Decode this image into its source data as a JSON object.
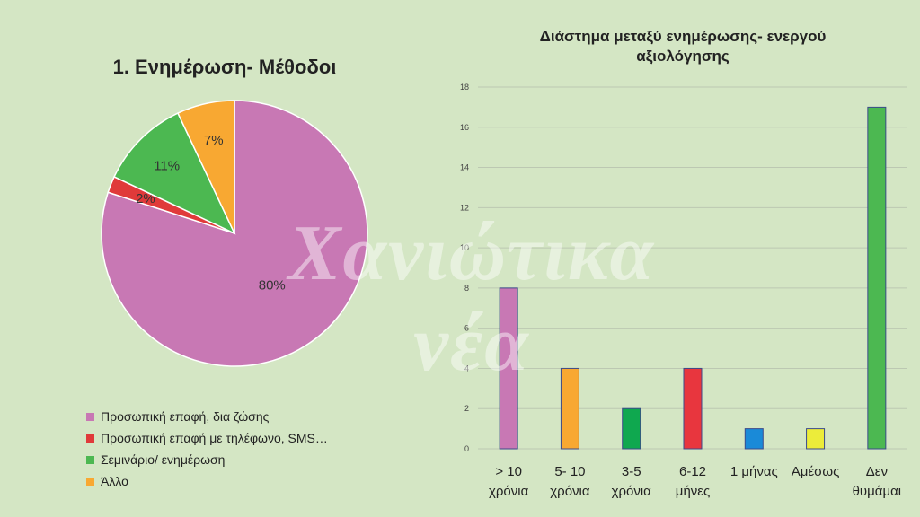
{
  "pie": {
    "title": "1. Ενημέρωση- Μέθοδοι"
  },
  "bar": {
    "title_line1": "Διάστημα μεταξύ ενημέρωσης- ενεργού",
    "title_line2": "αξιολόγησης"
  },
  "watermark": "Χανιώτικα νέα",
  "chart_data": [
    {
      "type": "pie",
      "title": "1. Ενημέρωση- Μέθοδοι",
      "slices": [
        {
          "label": "Προσωπική επαφή, δια ζώσης",
          "value": 80,
          "display": "80%",
          "color": "#c878b4"
        },
        {
          "label": "Προσωπική επαφή με τηλέφωνο, SMS…",
          "value": 2,
          "display": "2%",
          "color": "#e03a3a"
        },
        {
          "label": "Σεμινάριο/ ενημέρωση",
          "value": 11,
          "display": "11%",
          "color": "#4cb851"
        },
        {
          "label": "Άλλο",
          "value": 7,
          "display": "7%",
          "color": "#f8a832"
        }
      ],
      "legend_position": "bottom"
    },
    {
      "type": "bar",
      "title": "Διάστημα μεταξύ ενημέρωσης- ενεργού αξιολόγησης",
      "categories": [
        [
          "> 10",
          "χρόνια"
        ],
        [
          "5- 10",
          "χρόνια"
        ],
        [
          "3-5",
          "χρόνια"
        ],
        [
          "6-12",
          "μήνες"
        ],
        [
          "1 μήνας"
        ],
        [
          "Αμέσως"
        ],
        [
          "Δεν",
          "θυμάμαι"
        ]
      ],
      "values": [
        8,
        4,
        2,
        4,
        1,
        1,
        17
      ],
      "colors": [
        "#c878b4",
        "#f8a832",
        "#0fa84f",
        "#e8363e",
        "#1a8ad8",
        "#ecec3a",
        "#4cb851"
      ],
      "ylim": [
        0,
        18
      ],
      "yticks": [
        0,
        2,
        4,
        6,
        8,
        10,
        12,
        14,
        16,
        18
      ],
      "grid": true
    }
  ]
}
